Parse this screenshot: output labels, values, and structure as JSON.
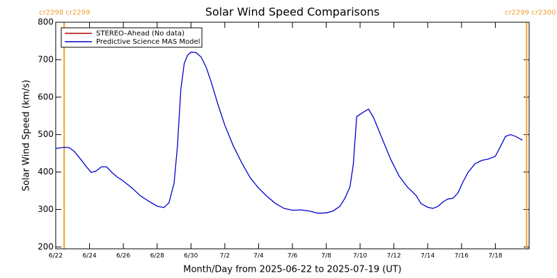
{
  "chart_data": {
    "type": "line",
    "title": "Solar Wind Speed Comparisons",
    "x_label": "Month/Day from 2025-06-22 to 2025-07-19 (UT)",
    "y_label": "Solar Wind Speed (km/s)",
    "xlim": [
      0,
      28
    ],
    "ylim": [
      195,
      800
    ],
    "yticks": [
      200,
      300,
      400,
      500,
      600,
      700,
      800
    ],
    "xticks": [
      {
        "value": 0,
        "label": "6/22"
      },
      {
        "value": 2,
        "label": "6/24"
      },
      {
        "value": 4,
        "label": "6/26"
      },
      {
        "value": 6,
        "label": "6/28"
      },
      {
        "value": 8,
        "label": "6/30"
      },
      {
        "value": 10,
        "label": "7/2"
      },
      {
        "value": 12,
        "label": "7/4"
      },
      {
        "value": 14,
        "label": "7/6"
      },
      {
        "value": 16,
        "label": "7/8"
      },
      {
        "value": 18,
        "label": "7/10"
      },
      {
        "value": 20,
        "label": "7/12"
      },
      {
        "value": 22,
        "label": "7/14"
      },
      {
        "value": 24,
        "label": "7/16"
      },
      {
        "value": 26,
        "label": "7/18"
      }
    ],
    "legend": "upper left",
    "markers": [
      {
        "x": 0.5,
        "label": "cr2298 cr2299",
        "color": "#f0a030"
      },
      {
        "x": 27.85,
        "label": "cr2299 cr2300",
        "color": "#f0a030"
      }
    ],
    "series": [
      {
        "name": "STEREO–Ahead (No data)",
        "color": "#b00000",
        "x": [],
        "values": []
      },
      {
        "name": "Predictive Science MAS Model",
        "color": "#0000cc",
        "x": [
          0,
          0.5,
          0.8,
          1.1,
          1.5,
          1.8,
          2.1,
          2.4,
          2.7,
          3.0,
          3.3,
          3.6,
          4.0,
          4.5,
          5.0,
          5.5,
          6.0,
          6.4,
          6.7,
          7.0,
          7.2,
          7.4,
          7.6,
          7.8,
          8.0,
          8.3,
          8.6,
          8.9,
          9.2,
          9.6,
          10.0,
          10.5,
          11.0,
          11.5,
          12.0,
          12.5,
          13.0,
          13.5,
          14.0,
          14.5,
          15.0,
          15.5,
          16.0,
          16.4,
          16.8,
          17.1,
          17.4,
          17.6,
          17.8,
          18.2,
          18.5,
          18.8,
          19.3,
          19.8,
          20.3,
          20.8,
          21.3,
          21.6,
          22.0,
          22.3,
          22.6,
          22.9,
          23.2,
          23.5,
          23.8,
          24.1,
          24.4,
          24.8,
          25.2,
          25.6,
          26.0,
          26.3,
          26.6,
          26.9,
          27.2,
          27.6
        ],
        "values": [
          463,
          466,
          465,
          455,
          433,
          415,
          399,
          403,
          414,
          414,
          400,
          388,
          376,
          358,
          337,
          322,
          309,
          305,
          318,
          370,
          470,
          620,
          690,
          712,
          720,
          719,
          707,
          680,
          640,
          580,
          525,
          470,
          425,
          385,
          357,
          335,
          316,
          303,
          298,
          299,
          296,
          290,
          291,
          296,
          308,
          330,
          360,
          420,
          548,
          560,
          568,
          545,
          490,
          435,
          390,
          360,
          338,
          316,
          306,
          303,
          308,
          320,
          328,
          330,
          345,
          375,
          400,
          422,
          431,
          435,
          442,
          468,
          495,
          500,
          495,
          485
        ]
      }
    ]
  }
}
